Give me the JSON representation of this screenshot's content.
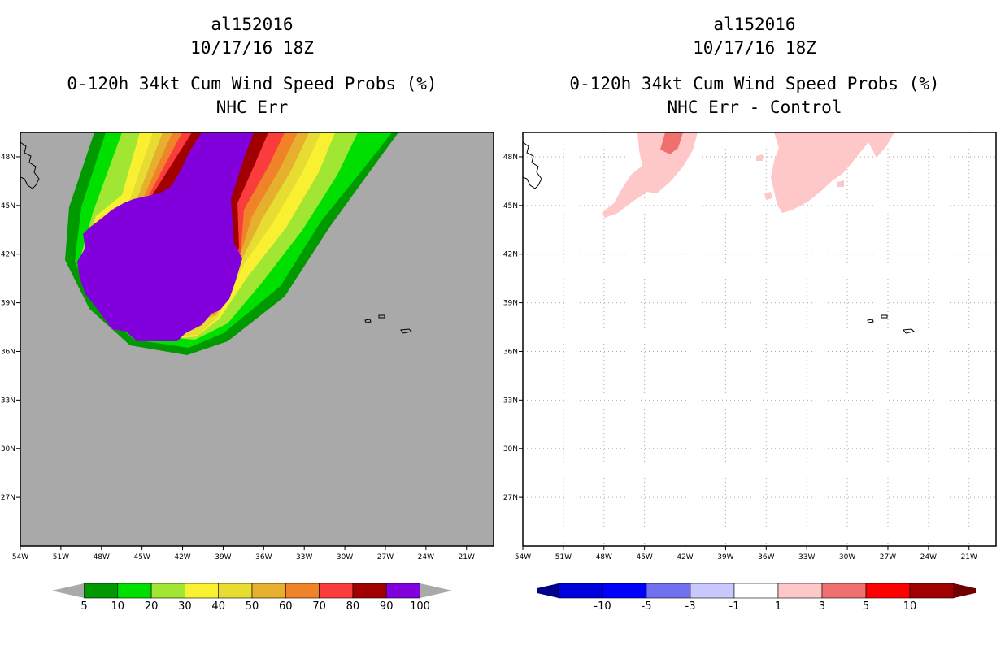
{
  "panels": [
    {
      "title_lines": [
        "al152016",
        "10/17/16 18Z",
        "0-120h 34kt Cum Wind Speed Probs (%)",
        "NHC Err"
      ],
      "background": "#a9a9a9"
    },
    {
      "title_lines": [
        "al152016",
        "10/17/16 18Z",
        "0-120h 34kt Cum Wind Speed Probs (%)",
        "NHC Err - Control"
      ],
      "background": "#ffffff"
    }
  ],
  "chart_data": [
    {
      "type": "heatmap",
      "title": "0-120h 34kt Cum Wind Speed Probs (%) — NHC Err",
      "storm": "al152016",
      "time": "10/17/16 18Z",
      "xlim": [
        -54,
        -19
      ],
      "ylim": [
        24,
        49.5
      ],
      "x_ticks": [
        -54,
        -51,
        -48,
        -45,
        -42,
        -39,
        -36,
        -33,
        -30,
        -27,
        -24,
        -21
      ],
      "x_tick_labels": [
        "54W",
        "51W",
        "48W",
        "45W",
        "42W",
        "39W",
        "36W",
        "33W",
        "30W",
        "27W",
        "24W",
        "21W"
      ],
      "y_ticks": [
        27,
        30,
        33,
        36,
        39,
        42,
        45,
        48
      ],
      "y_tick_labels": [
        "27N",
        "30N",
        "33N",
        "36N",
        "39N",
        "42N",
        "45N",
        "48N"
      ],
      "grid": false,
      "colorbar": {
        "levels": [
          "5",
          "10",
          "20",
          "30",
          "40",
          "50",
          "60",
          "70",
          "80",
          "90",
          "100"
        ],
        "colors": [
          "#009a00",
          "#00e000",
          "#a0e632",
          "#faf032",
          "#e6dc32",
          "#e6af2d",
          "#f08228",
          "#fa3c3c",
          "#a00000",
          "#8200dc"
        ],
        "ends": [
          "#a9a9a9",
          "#a9a9a9"
        ]
      },
      "swath_levels": [
        5,
        10,
        20,
        30,
        40,
        50,
        60,
        70,
        80,
        90,
        100
      ]
    },
    {
      "type": "heatmap",
      "title": "0-120h 34kt Cum Wind Speed Probs (%) — NHC Err - Control",
      "storm": "al152016",
      "time": "10/17/16 18Z",
      "xlim": [
        -54,
        -19
      ],
      "ylim": [
        24,
        49.5
      ],
      "x_ticks": [
        -54,
        -51,
        -48,
        -45,
        -42,
        -39,
        -36,
        -33,
        -30,
        -27,
        -24,
        -21
      ],
      "x_tick_labels": [
        "54W",
        "51W",
        "48W",
        "45W",
        "42W",
        "39W",
        "36W",
        "33W",
        "30W",
        "27W",
        "24W",
        "21W"
      ],
      "y_ticks": [
        27,
        30,
        33,
        36,
        39,
        42,
        45,
        48
      ],
      "y_tick_labels": [
        "27N",
        "30N",
        "33N",
        "36N",
        "39N",
        "42N",
        "45N",
        "48N"
      ],
      "grid": true,
      "colorbar": {
        "levels": [
          "-10",
          "-5",
          "-3",
          "-1",
          "1",
          "3",
          "5",
          "10"
        ],
        "colors": [
          "#0000dc",
          "#0000ff",
          "#7070f0",
          "#c8c8ff",
          "#ffffff",
          "#ffc8c8",
          "#f07070",
          "#ff0000",
          "#a00000"
        ],
        "ends": [
          "#00008c",
          "#700000"
        ]
      },
      "difference_regions": [
        {
          "value_range": "1 to 3",
          "color": "#ffc8c8",
          "lon": [
            -46.5,
            -42.0
          ],
          "lat": [
            44.8,
            49.5
          ]
        },
        {
          "value_range": "1 to 3",
          "color": "#ffc8c8",
          "lon": [
            -34.5,
            -26.0
          ],
          "lat": [
            45.0,
            49.5
          ]
        },
        {
          "value_range": "3 to 5",
          "color": "#f07070",
          "lon": [
            -43.5,
            -42.2
          ],
          "lat": [
            48.3,
            49.5
          ]
        }
      ]
    }
  ]
}
